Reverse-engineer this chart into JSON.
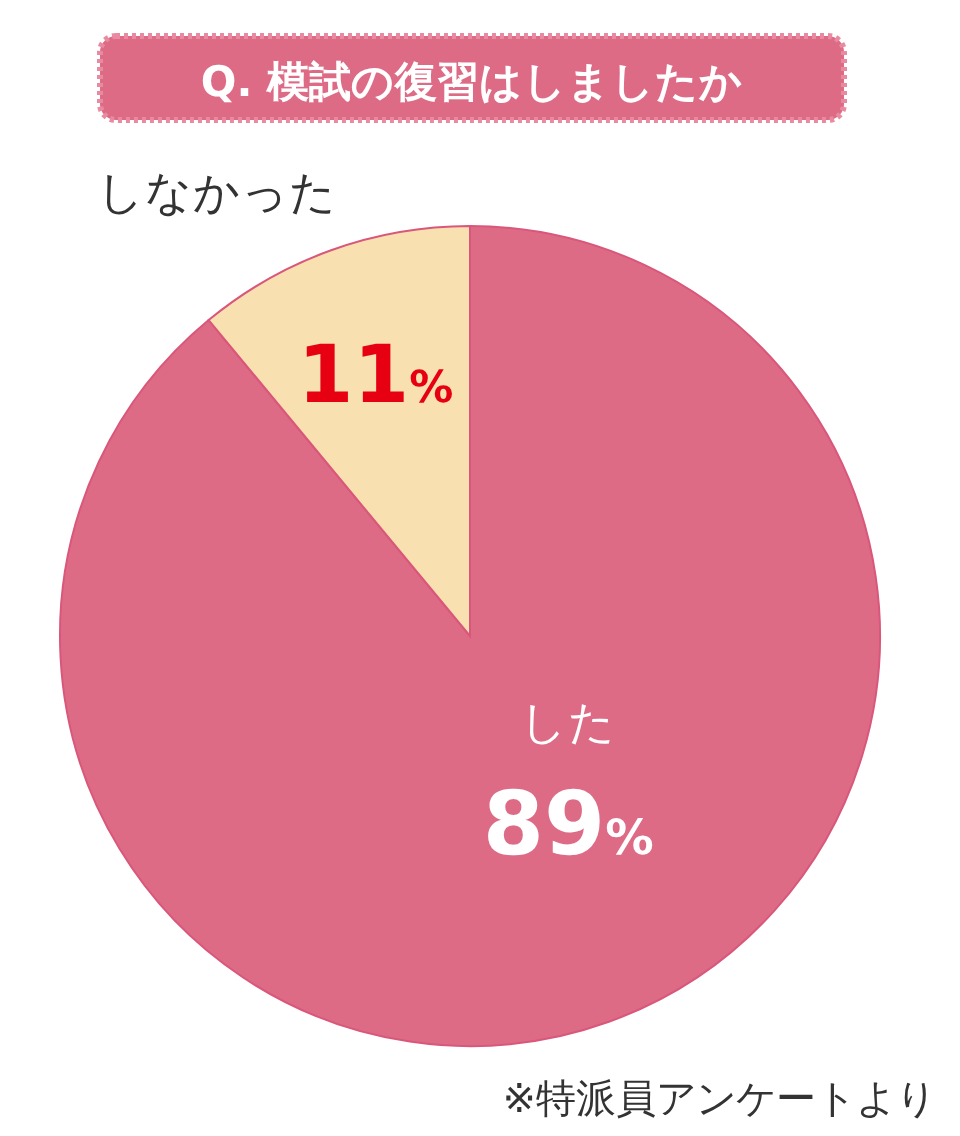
{
  "chart_data": {
    "type": "pie",
    "title": "Q. 模試の復習はしましたか",
    "categories": [
      "した",
      "しなかった"
    ],
    "values": [
      89,
      11
    ],
    "value_labels": [
      "89%",
      "11%"
    ],
    "colors": [
      "#de6b86",
      "#f9e0b0"
    ],
    "annotations": [
      "※特派員アンケートより"
    ]
  }
}
